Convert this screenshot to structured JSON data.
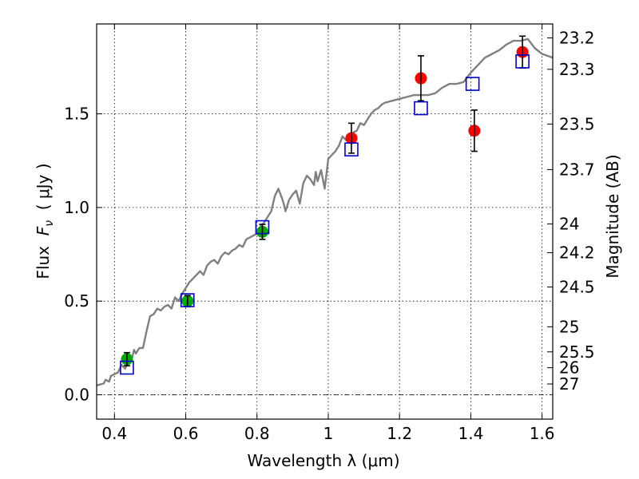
{
  "chart_data": {
    "type": "scatter",
    "xlabel": "Wavelength  λ (μm)",
    "ylabel": "Flux  F_ν  ( μJy )",
    "ylabel_parts": {
      "prefix": "Flux  ",
      "symbol": "F",
      "subscript": "ν",
      "suffix": "  ( μJy )"
    },
    "y2label": "Magnitude (AB)",
    "xlim": [
      0.35,
      1.63
    ],
    "ylim": [
      -0.13,
      1.98
    ],
    "grid": true,
    "x_ticks": [
      {
        "value": 0.4,
        "label": "0.4"
      },
      {
        "value": 0.6,
        "label": "0.6"
      },
      {
        "value": 0.8,
        "label": "0.8"
      },
      {
        "value": 1.0,
        "label": "1"
      },
      {
        "value": 1.2,
        "label": "1.2"
      },
      {
        "value": 1.4,
        "label": "1.4"
      },
      {
        "value": 1.6,
        "label": "1.6"
      }
    ],
    "y_ticks": [
      {
        "value": 0.0,
        "label": "0.0"
      },
      {
        "value": 0.5,
        "label": "0.5"
      },
      {
        "value": 1.0,
        "label": "1.0"
      },
      {
        "value": 1.5,
        "label": "1.5"
      }
    ],
    "y2_ticks": [
      {
        "value": 23.2,
        "label": "23.2"
      },
      {
        "value": 23.3,
        "label": "23.3"
      },
      {
        "value": 23.5,
        "label": "23.5"
      },
      {
        "value": 23.7,
        "label": "23.7"
      },
      {
        "value": 24.0,
        "label": "24"
      },
      {
        "value": 24.2,
        "label": "24.2"
      },
      {
        "value": 24.5,
        "label": "24.5"
      },
      {
        "value": 25.0,
        "label": "25"
      },
      {
        "value": 25.5,
        "label": "25.5"
      },
      {
        "value": 26.0,
        "label": "26"
      },
      {
        "value": 27.0,
        "label": "27"
      }
    ],
    "series": [
      {
        "kind": "line",
        "color": "#808080",
        "x": [
          0.35,
          0.37,
          0.375,
          0.385,
          0.39,
          0.4,
          0.41,
          0.42,
          0.43,
          0.44,
          0.45,
          0.455,
          0.46,
          0.47,
          0.48,
          0.49,
          0.5,
          0.51,
          0.52,
          0.53,
          0.54,
          0.55,
          0.56,
          0.57,
          0.58,
          0.59,
          0.6,
          0.61,
          0.62,
          0.63,
          0.64,
          0.65,
          0.66,
          0.67,
          0.68,
          0.69,
          0.7,
          0.71,
          0.72,
          0.73,
          0.74,
          0.75,
          0.76,
          0.77,
          0.78,
          0.79,
          0.8,
          0.81,
          0.82,
          0.83,
          0.84,
          0.85,
          0.86,
          0.87,
          0.875,
          0.88,
          0.89,
          0.9,
          0.91,
          0.92,
          0.93,
          0.94,
          0.95,
          0.96,
          0.965,
          0.97,
          0.98,
          0.99,
          1.0,
          1.01,
          1.02,
          1.03,
          1.04,
          1.05,
          1.06,
          1.07,
          1.08,
          1.09,
          1.1,
          1.11,
          1.12,
          1.13,
          1.14,
          1.15,
          1.16,
          1.18,
          1.2,
          1.22,
          1.24,
          1.26,
          1.28,
          1.3,
          1.32,
          1.34,
          1.36,
          1.38,
          1.4,
          1.42,
          1.44,
          1.46,
          1.48,
          1.5,
          1.52,
          1.54,
          1.56,
          1.58,
          1.6,
          1.63
        ],
        "y": [
          0.05,
          0.06,
          0.08,
          0.07,
          0.1,
          0.11,
          0.12,
          0.16,
          0.14,
          0.18,
          0.2,
          0.24,
          0.22,
          0.25,
          0.25,
          0.34,
          0.42,
          0.43,
          0.46,
          0.45,
          0.47,
          0.48,
          0.46,
          0.52,
          0.5,
          0.54,
          0.57,
          0.6,
          0.62,
          0.64,
          0.66,
          0.64,
          0.69,
          0.71,
          0.72,
          0.7,
          0.74,
          0.76,
          0.75,
          0.77,
          0.78,
          0.8,
          0.79,
          0.83,
          0.84,
          0.85,
          0.86,
          0.9,
          0.92,
          0.95,
          0.98,
          1.06,
          1.1,
          1.05,
          1.02,
          0.98,
          1.04,
          1.07,
          1.09,
          1.02,
          1.13,
          1.17,
          1.15,
          1.12,
          1.19,
          1.14,
          1.2,
          1.1,
          1.26,
          1.28,
          1.3,
          1.33,
          1.38,
          1.36,
          1.35,
          1.4,
          1.41,
          1.45,
          1.44,
          1.47,
          1.5,
          1.52,
          1.53,
          1.55,
          1.56,
          1.57,
          1.58,
          1.59,
          1.6,
          1.6,
          1.6,
          1.61,
          1.64,
          1.66,
          1.66,
          1.67,
          1.72,
          1.76,
          1.8,
          1.82,
          1.84,
          1.87,
          1.89,
          1.89,
          1.9,
          1.85,
          1.82,
          1.8
        ]
      },
      {
        "kind": "markers",
        "marker": "circle",
        "color": "#00aa00",
        "points": [
          {
            "x": 0.435,
            "y": 0.19,
            "yerr": 0.035
          },
          {
            "x": 0.605,
            "y": 0.5,
            "yerr": 0.03
          },
          {
            "x": 0.815,
            "y": 0.87,
            "yerr": 0.04
          }
        ]
      },
      {
        "kind": "markers",
        "marker": "circle",
        "color": "#ff0000",
        "points": [
          {
            "x": 1.065,
            "y": 1.37,
            "yerr": 0.08
          },
          {
            "x": 1.26,
            "y": 1.69,
            "yerr": 0.12
          },
          {
            "x": 1.41,
            "y": 1.41,
            "yerr": 0.11
          },
          {
            "x": 1.545,
            "y": 1.83,
            "yerr": 0.085
          }
        ]
      },
      {
        "kind": "markers",
        "marker": "square-open",
        "color": "#0000cc",
        "points": [
          {
            "x": 0.435,
            "y": 0.145
          },
          {
            "x": 0.605,
            "y": 0.505
          },
          {
            "x": 0.815,
            "y": 0.895
          },
          {
            "x": 1.065,
            "y": 1.31
          },
          {
            "x": 1.26,
            "y": 1.53
          },
          {
            "x": 1.405,
            "y": 1.66
          },
          {
            "x": 1.545,
            "y": 1.78
          }
        ]
      }
    ]
  }
}
